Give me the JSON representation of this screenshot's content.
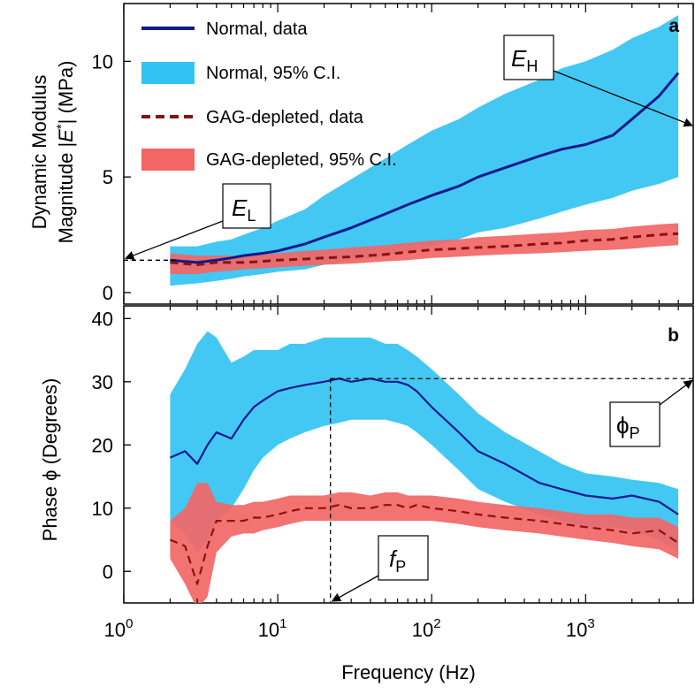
{
  "figure": {
    "x_axis_label": "Frequency (Hz)",
    "x_tick_labels": [
      {
        "base": "10",
        "exp": "0"
      },
      {
        "base": "10",
        "exp": "1"
      },
      {
        "base": "10",
        "exp": "2"
      },
      {
        "base": "10",
        "exp": "3"
      }
    ],
    "colors": {
      "normal_data": "#0d1a8c",
      "normal_ci": "#33c3f2",
      "gag_data": "#8b1212",
      "gag_ci": "#f26666"
    }
  },
  "chart_data": [
    {
      "type": "line",
      "panel_letter": "a",
      "ylabel_line1": "Dynamic Modulus",
      "ylabel_line2_pre": "Magnitude |",
      "ylabel_line2_var": "E",
      "ylabel_line2_sup": "*",
      "ylabel_line2_post": "| (MPa)",
      "x_scale": "log",
      "xlim": [
        1,
        5000
      ],
      "ylim": [
        -0.5,
        12.5
      ],
      "y_ticks": [
        "0",
        "5",
        "10"
      ],
      "legend": [
        {
          "label": "Normal, data",
          "style": "line"
        },
        {
          "label": "Normal, 95% C.I.",
          "style": "band"
        },
        {
          "label": "GAG-depleted, data",
          "style": "dashed"
        },
        {
          "label": "GAG-depleted, 95% C.I.",
          "style": "band"
        }
      ],
      "legend_placement": "top-left",
      "series": [
        {
          "name": "Normal, data",
          "x": [
            2,
            3,
            4,
            5,
            6,
            8,
            10,
            15,
            20,
            30,
            50,
            70,
            100,
            150,
            200,
            300,
            500,
            700,
            1000,
            1500,
            2000,
            3000,
            4000
          ],
          "y": [
            1.4,
            1.3,
            1.4,
            1.5,
            1.6,
            1.7,
            1.8,
            2.1,
            2.4,
            2.8,
            3.4,
            3.8,
            4.2,
            4.6,
            5.0,
            5.4,
            5.9,
            6.2,
            6.4,
            6.8,
            7.5,
            8.5,
            9.5
          ],
          "ci_upper": [
            2.0,
            2.0,
            2.2,
            2.3,
            2.5,
            2.8,
            3.1,
            3.6,
            4.2,
            4.9,
            5.8,
            6.4,
            7.0,
            7.5,
            8.0,
            8.6,
            9.2,
            9.7,
            10.0,
            10.5,
            11.0,
            11.5,
            12.0
          ],
          "ci_lower": [
            0.3,
            0.4,
            0.5,
            0.6,
            0.7,
            0.8,
            0.9,
            1.0,
            1.2,
            1.4,
            1.6,
            1.8,
            2.0,
            2.3,
            2.6,
            2.8,
            3.2,
            3.5,
            3.8,
            4.1,
            4.4,
            4.7,
            5.0
          ]
        },
        {
          "name": "GAG-depleted, data",
          "x": [
            2,
            3,
            4,
            5,
            6,
            8,
            10,
            15,
            20,
            30,
            50,
            70,
            100,
            150,
            200,
            300,
            500,
            700,
            1000,
            1500,
            2000,
            3000,
            4000
          ],
          "y": [
            1.3,
            1.2,
            1.3,
            1.3,
            1.3,
            1.35,
            1.4,
            1.45,
            1.5,
            1.55,
            1.65,
            1.75,
            1.85,
            1.9,
            1.95,
            2.0,
            2.1,
            2.15,
            2.25,
            2.3,
            2.4,
            2.5,
            2.55
          ],
          "ci_upper": [
            1.7,
            1.6,
            1.6,
            1.6,
            1.6,
            1.65,
            1.7,
            1.8,
            1.85,
            1.95,
            2.05,
            2.15,
            2.25,
            2.3,
            2.4,
            2.45,
            2.55,
            2.6,
            2.7,
            2.75,
            2.85,
            2.95,
            3.0
          ],
          "ci_lower": [
            0.8,
            0.8,
            0.9,
            0.95,
            1.0,
            1.05,
            1.1,
            1.15,
            1.2,
            1.25,
            1.35,
            1.4,
            1.5,
            1.55,
            1.6,
            1.65,
            1.7,
            1.75,
            1.8,
            1.85,
            1.9,
            2.0,
            2.05
          ]
        }
      ],
      "annotations": [
        {
          "symbol": "E",
          "subscript": "L",
          "ref_value": 1.4,
          "note": "dashed reference at low-frequency modulus"
        },
        {
          "symbol": "E",
          "subscript": "H"
        }
      ]
    },
    {
      "type": "line",
      "panel_letter": "b",
      "ylabel": "Phase ϕ (Degrees)",
      "x_scale": "log",
      "xlim": [
        1,
        5000
      ],
      "ylim": [
        -5,
        42
      ],
      "y_ticks": [
        "0",
        "10",
        "20",
        "30",
        "40"
      ],
      "series": [
        {
          "name": "Normal, data",
          "x": [
            2,
            2.5,
            3,
            3.5,
            4,
            5,
            6,
            7,
            8,
            10,
            12,
            15,
            20,
            25,
            30,
            40,
            50,
            60,
            70,
            80,
            100,
            150,
            200,
            300,
            500,
            700,
            1000,
            1500,
            2000,
            3000,
            4000
          ],
          "y": [
            18,
            19,
            17,
            20,
            22,
            21,
            24,
            26,
            27,
            28.5,
            29,
            29.5,
            30,
            30.5,
            30,
            30.5,
            30,
            30,
            29.5,
            28.5,
            26,
            22,
            19,
            17,
            14,
            13,
            12,
            11.5,
            12,
            11,
            9
          ],
          "ci_upper": [
            28,
            32,
            36,
            38,
            37,
            33,
            34,
            35,
            35,
            35,
            36,
            36,
            37,
            37,
            37,
            37,
            36,
            36,
            35,
            34,
            32,
            28,
            25,
            22,
            19,
            17,
            15.5,
            15,
            14.5,
            14,
            13
          ],
          "ci_lower": [
            8,
            6,
            3,
            5,
            8,
            10,
            13,
            16,
            18,
            20,
            21,
            22,
            23,
            23.5,
            24,
            24,
            24,
            23.5,
            23,
            22,
            20,
            16,
            13,
            11,
            9,
            8,
            7,
            7,
            6.5,
            5,
            3
          ]
        },
        {
          "name": "GAG-depleted, data",
          "x": [
            2,
            2.5,
            3,
            3.5,
            4,
            5,
            6,
            7,
            8,
            10,
            12,
            15,
            20,
            25,
            30,
            40,
            50,
            60,
            70,
            80,
            100,
            150,
            200,
            300,
            500,
            700,
            1000,
            1500,
            2000,
            3000,
            4000
          ],
          "y": [
            5,
            4,
            -2,
            4,
            8,
            8,
            8,
            8.5,
            8.5,
            9,
            9.5,
            10,
            10,
            10.5,
            10,
            10,
            10.5,
            10.5,
            10,
            10.5,
            10,
            9.5,
            9,
            8.5,
            8,
            7.5,
            7,
            6.5,
            6,
            6.5,
            4.5
          ],
          "ci_upper": [
            8,
            10,
            14,
            14,
            11,
            10.5,
            10.5,
            11,
            11,
            11.5,
            12,
            12,
            12,
            12.5,
            12.5,
            12,
            12.5,
            12.5,
            12,
            12,
            12,
            11.5,
            11,
            10.5,
            10,
            9.5,
            9,
            9,
            8.5,
            8.5,
            7
          ],
          "ci_lower": [
            2,
            -2,
            -6,
            -4,
            3,
            5.5,
            6,
            6,
            6.5,
            7,
            7.5,
            8,
            8,
            8,
            8,
            8,
            8,
            8,
            8,
            8,
            8,
            7.5,
            7,
            6.5,
            6,
            5.5,
            5,
            4.5,
            4,
            3.5,
            2
          ]
        }
      ],
      "annotations": [
        {
          "symbol": "ϕ",
          "subscript": "P",
          "ref_value": 30.5,
          "note": "dashed horizontal at peak phase"
        },
        {
          "symbol": "f",
          "subscript": "P",
          "ref_value": 22,
          "note": "dashed vertical at peak frequency"
        }
      ]
    }
  ]
}
